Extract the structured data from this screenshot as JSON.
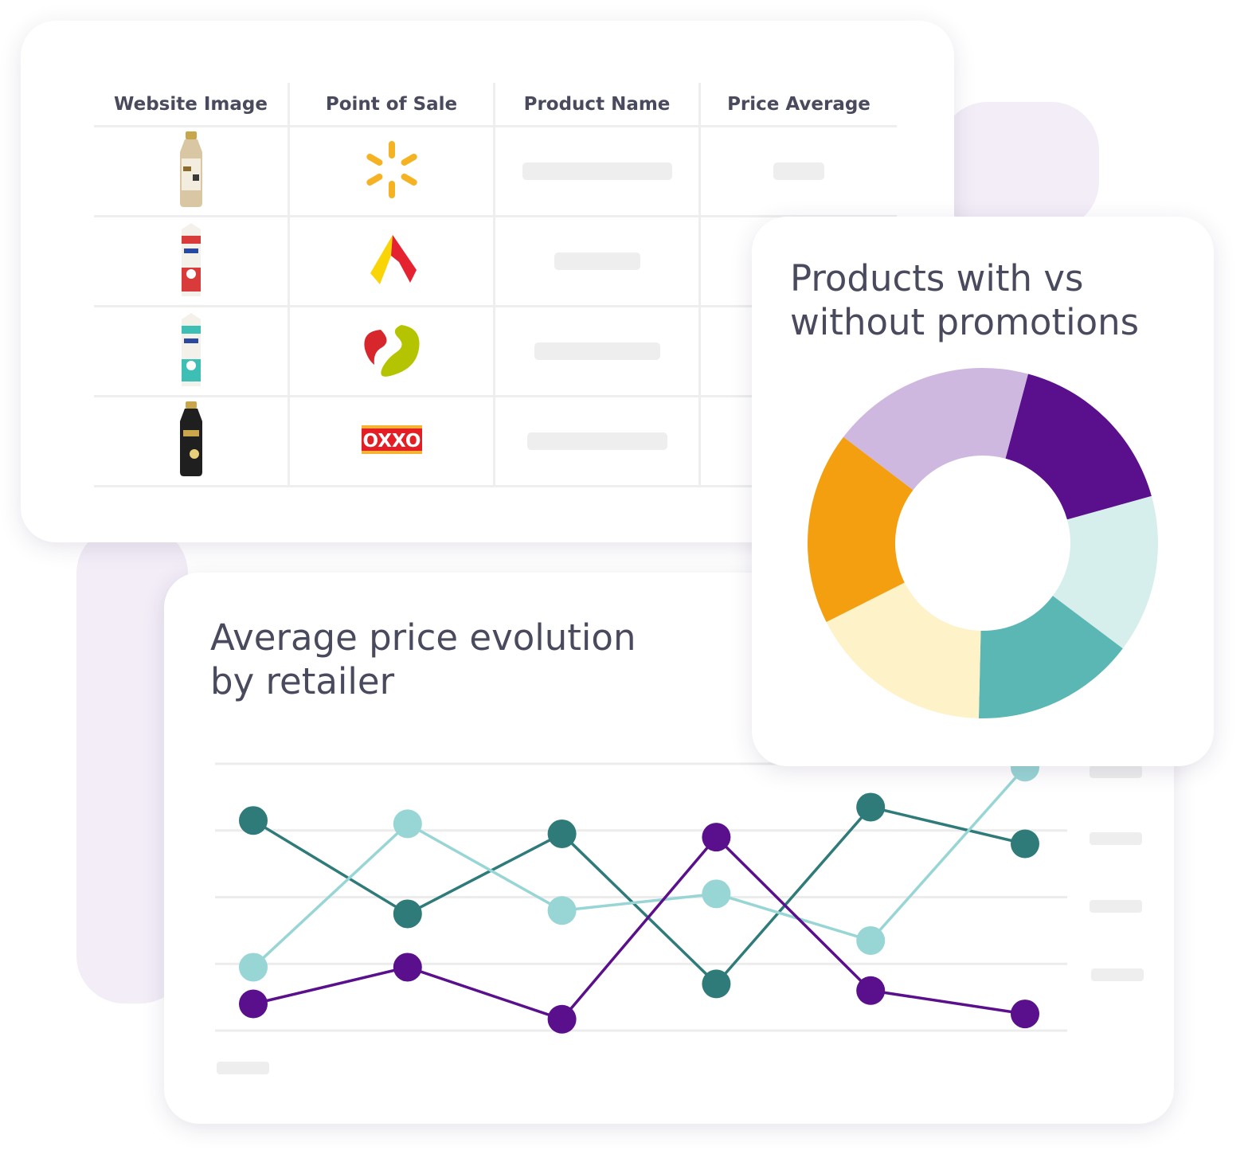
{
  "table": {
    "headers": {
      "website_image": "Website Image",
      "point_of_sale": "Point of Sale",
      "product_name": "Product Name",
      "price_average": "Price Average"
    },
    "rows": [
      {
        "product_icon": "lala-100-protein-bottle-icon",
        "retailer_icon": "walmart-spark-icon",
        "retailer_logo_text": "",
        "bottle_colors": [
          "#d8c7a2",
          "#f3ede0"
        ]
      },
      {
        "product_icon": "lala-milk-carton-red-icon",
        "retailer_icon": "chedraui-logo-icon",
        "retailer_logo_text": "",
        "bottle_colors": [
          "#d93a3a",
          "#f4f1ea"
        ]
      },
      {
        "product_icon": "lala-milk-carton-teal-icon",
        "retailer_icon": "soriana-logo-icon",
        "retailer_logo_text": "",
        "bottle_colors": [
          "#3dbfb5",
          "#f4f1ea"
        ]
      },
      {
        "product_icon": "lala-100-protein-dark-bottle-icon",
        "retailer_icon": "oxxo-logo-icon",
        "retailer_logo_text": "OXXO",
        "bottle_colors": [
          "#1f1f1f",
          "#c9a64b"
        ]
      }
    ]
  },
  "chart_data": [
    {
      "type": "line",
      "title": "Average price evolution by retailer",
      "x": [
        1,
        2,
        3,
        4,
        5,
        6
      ],
      "ylim": [
        0,
        4
      ],
      "grid": true,
      "series": [
        {
          "color": "#2f7b7a",
          "values": [
            3.15,
            1.75,
            2.95,
            0.7,
            3.35,
            2.8
          ]
        },
        {
          "color": "#98d5d5",
          "values": [
            0.95,
            3.1,
            1.8,
            2.05,
            1.35,
            3.95
          ]
        },
        {
          "color": "#5a0f8c",
          "values": [
            0.4,
            0.95,
            0.17,
            2.9,
            0.6,
            0.25
          ]
        }
      ]
    },
    {
      "type": "pie",
      "title": "Products with vs without promotions",
      "hole_ratio": 0.5,
      "start_angle_deg": -75,
      "slices": [
        {
          "value": 16.5,
          "color": "#5a0f8c"
        },
        {
          "value": 14.6,
          "color": "#d6eeec"
        },
        {
          "value": 15.1,
          "color": "#5ab7b3"
        },
        {
          "value": 17.2,
          "color": "#fdf2c8"
        },
        {
          "value": 17.8,
          "color": "#f39f0f"
        },
        {
          "value": 18.8,
          "color": "#cfb8e0"
        }
      ]
    }
  ]
}
